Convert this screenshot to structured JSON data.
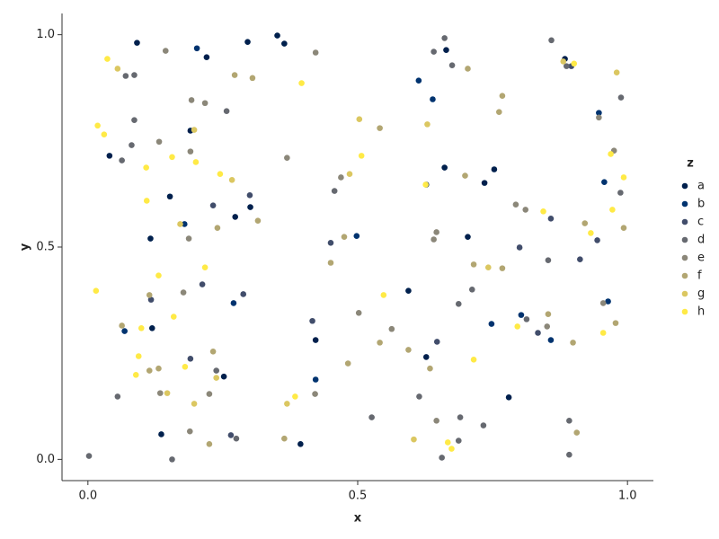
{
  "chart_data": {
    "type": "scatter",
    "x_label": "x",
    "y_label": "y",
    "legend_title": "z",
    "legend": "right",
    "xlim": [
      -0.048,
      1.048
    ],
    "ylim": [
      -0.05,
      1.05
    ],
    "xticks": [
      {
        "value": 0,
        "label": "0.0"
      },
      {
        "value": 0.5,
        "label": "0.5"
      },
      {
        "value": 1,
        "label": "1.0"
      }
    ],
    "yticks": [
      {
        "value": 0,
        "label": "0.0"
      },
      {
        "value": 0.5,
        "label": "0.5"
      },
      {
        "value": 1,
        "label": "1.0"
      }
    ],
    "series": [
      {
        "name": "a",
        "color": "#00204D",
        "x": [
          0.091,
          0.296,
          0.351,
          0.364,
          0.22,
          0.664,
          0.884,
          0.19,
          0.04,
          0.152,
          0.301,
          0.116,
          0.273,
          0.661,
          0.753,
          0.735,
          0.627,
          0.594,
          0.422,
          0.627,
          0.252,
          0.136,
          0.394,
          0.78,
          0.119,
          0.704
        ],
        "values": [
          0.981,
          0.983,
          0.998,
          0.979,
          0.947,
          0.964,
          0.943,
          0.774,
          0.715,
          0.619,
          0.594,
          0.52,
          0.571,
          0.687,
          0.683,
          0.651,
          0.647,
          0.397,
          0.281,
          0.241,
          0.195,
          0.059,
          0.036,
          0.146,
          0.309,
          0.524
        ]
      },
      {
        "name": "b",
        "color": "#00336F",
        "x": [
          0.613,
          0.068,
          0.179,
          0.27,
          0.422,
          0.498,
          0.858,
          0.957,
          0.964,
          0.803,
          0.748,
          0.639,
          0.947,
          0.202
        ],
        "values": [
          0.892,
          0.302,
          0.554,
          0.368,
          0.188,
          0.526,
          0.281,
          0.653,
          0.372,
          0.34,
          0.319,
          0.848,
          0.816,
          0.968
        ]
      },
      {
        "name": "c",
        "color": "#414D6B",
        "x": [
          0.896,
          0.45,
          0.912,
          0.834,
          0.647,
          0.416,
          0.19,
          0.265,
          0.117,
          0.858,
          0.232,
          0.3,
          0.212,
          0.288,
          0.8,
          0.944
        ],
        "values": [
          0.926,
          0.51,
          0.471,
          0.298,
          0.277,
          0.326,
          0.237,
          0.057,
          0.376,
          0.567,
          0.598,
          0.622,
          0.412,
          0.389,
          0.499,
          0.516
        ]
      },
      {
        "name": "d",
        "color": "#666970",
        "x": [
          0.661,
          0.641,
          0.675,
          0.887,
          0.859,
          0.07,
          0.086,
          0.987,
          0.988,
          0.257,
          0.457,
          0.69,
          0.526,
          0.687,
          0.733,
          0.892,
          0.892,
          0.813,
          0.614,
          0.238,
          0.687,
          0.712,
          0.002,
          0.055,
          0.156,
          0.275,
          0.063,
          0.086,
          0.081,
          0.656,
          0.853
        ],
        "values": [
          0.992,
          0.96,
          0.928,
          0.926,
          0.987,
          0.903,
          0.905,
          0.628,
          0.852,
          0.82,
          0.632,
          0.099,
          0.099,
          0.044,
          0.08,
          0.011,
          0.091,
          0.33,
          0.148,
          0.209,
          0.366,
          0.4,
          0.008,
          0.148,
          0.0,
          0.049,
          0.704,
          0.799,
          0.74,
          0.004,
          0.469
        ]
      },
      {
        "name": "e",
        "color": "#8B8779",
        "x": [
          0.144,
          0.217,
          0.422,
          0.192,
          0.132,
          0.19,
          0.369,
          0.469,
          0.793,
          0.811,
          0.947,
          0.975,
          0.187,
          0.225,
          0.641,
          0.563,
          0.421,
          0.177,
          0.134,
          0.851,
          0.955,
          0.502,
          0.646,
          0.189,
          0.646
        ],
        "values": [
          0.962,
          0.839,
          0.958,
          0.846,
          0.748,
          0.725,
          0.71,
          0.664,
          0.6,
          0.588,
          0.805,
          0.727,
          0.52,
          0.154,
          0.518,
          0.307,
          0.154,
          0.393,
          0.156,
          0.313,
          0.368,
          0.345,
          0.091,
          0.066,
          0.535
        ]
      },
      {
        "name": "f",
        "color": "#B2A672",
        "x": [
          0.272,
          0.305,
          0.762,
          0.768,
          0.541,
          0.704,
          0.699,
          0.715,
          0.768,
          0.921,
          0.993,
          0.114,
          0.063,
          0.24,
          0.315,
          0.45,
          0.475,
          0.232,
          0.482,
          0.594,
          0.541,
          0.634,
          0.364,
          0.225,
          0.899,
          0.853,
          0.978,
          0.906,
          0.131,
          0.114
        ],
        "values": [
          0.905,
          0.898,
          0.818,
          0.856,
          0.78,
          0.92,
          0.668,
          0.459,
          0.45,
          0.556,
          0.545,
          0.387,
          0.315,
          0.545,
          0.562,
          0.463,
          0.524,
          0.254,
          0.226,
          0.258,
          0.275,
          0.214,
          0.049,
          0.036,
          0.275,
          0.342,
          0.321,
          0.063,
          0.214,
          0.209
        ]
      },
      {
        "name": "g",
        "color": "#DBC761",
        "x": [
          0.055,
          0.503,
          0.629,
          0.742,
          0.98,
          0.881,
          0.197,
          0.267,
          0.171,
          0.485,
          0.147,
          0.197,
          0.604,
          0.369,
          0.238
        ],
        "values": [
          0.92,
          0.801,
          0.789,
          0.452,
          0.911,
          0.937,
          0.776,
          0.658,
          0.554,
          0.672,
          0.156,
          0.131,
          0.047,
          0.131,
          0.192
        ]
      },
      {
        "name": "h",
        "color": "#FFEA46",
        "x": [
          0.036,
          0.018,
          0.03,
          0.108,
          0.156,
          0.2,
          0.245,
          0.109,
          0.396,
          0.507,
          0.901,
          0.969,
          0.993,
          0.972,
          0.844,
          0.932,
          0.626,
          0.015,
          0.217,
          0.131,
          0.159,
          0.099,
          0.094,
          0.089,
          0.18,
          0.384,
          0.548,
          0.715,
          0.796,
          0.955,
          0.667,
          0.674
        ],
        "values": [
          0.943,
          0.786,
          0.765,
          0.687,
          0.712,
          0.7,
          0.672,
          0.609,
          0.886,
          0.715,
          0.932,
          0.719,
          0.664,
          0.588,
          0.584,
          0.533,
          0.647,
          0.397,
          0.452,
          0.433,
          0.336,
          0.309,
          0.243,
          0.199,
          0.218,
          0.148,
          0.387,
          0.235,
          0.313,
          0.298,
          0.04,
          0.025
        ]
      }
    ]
  }
}
